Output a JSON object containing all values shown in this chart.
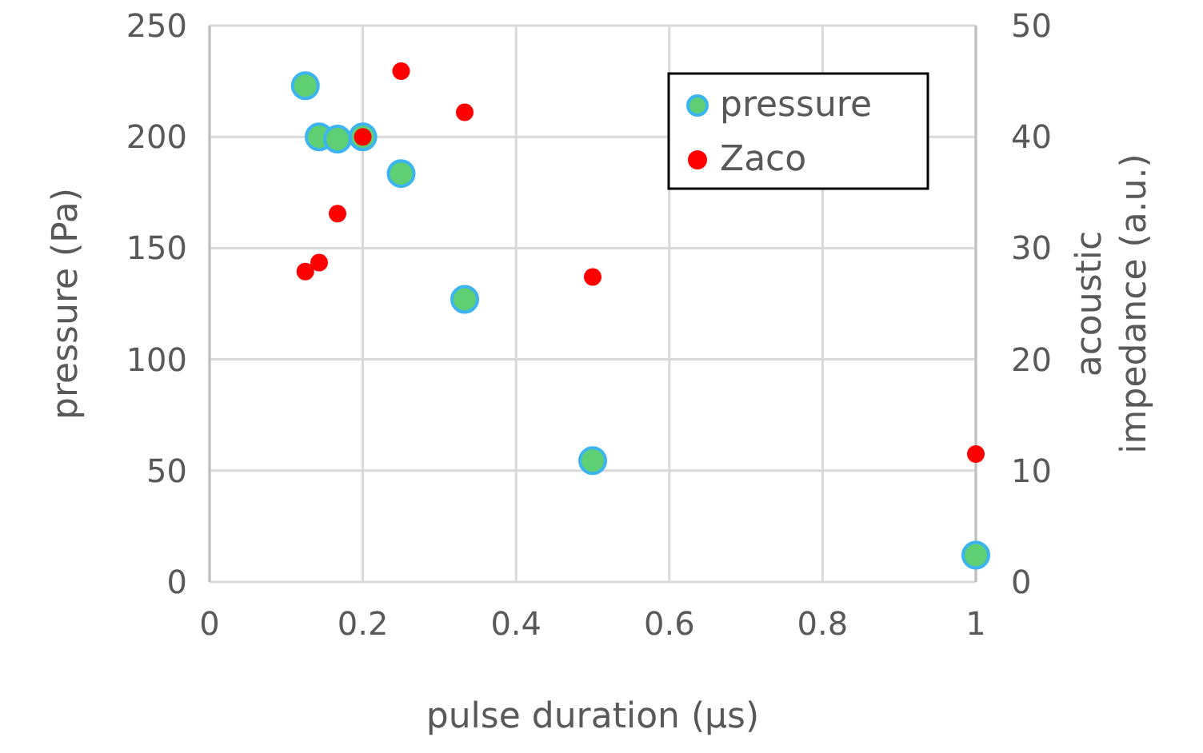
{
  "chart_data": {
    "type": "scatter",
    "xlabel": "pulse duration (µs)",
    "ylabel": "pressure (Pa)",
    "y2label": "acoustic impedance (a.u.)",
    "x": [
      0.125,
      0.143,
      0.167,
      0.2,
      0.25,
      0.333,
      0.5,
      1
    ],
    "series": [
      {
        "name": "pressure",
        "color": "#5ecf73",
        "values": [
          223,
          200,
          199,
          200,
          183.5,
          127,
          54.5,
          12
        ]
      },
      {
        "name": "Zaco",
        "color": "#ff0000",
        "axis": "y2",
        "values": [
          27.9,
          28.7,
          33.1,
          40,
          45.9,
          42.2,
          27.4,
          11.5
        ]
      }
    ],
    "xlim": [
      0,
      1
    ],
    "xticks": [
      0,
      0.2,
      0.4,
      0.6,
      0.8,
      1
    ],
    "ylim": [
      0,
      250
    ],
    "yticks": [
      0,
      50,
      100,
      150,
      200,
      250
    ],
    "y2lim": [
      0,
      50
    ],
    "y2ticks": [
      0,
      10,
      20,
      30,
      40,
      50
    ],
    "grid": true,
    "legend": "top right",
    "marker": "circle"
  }
}
